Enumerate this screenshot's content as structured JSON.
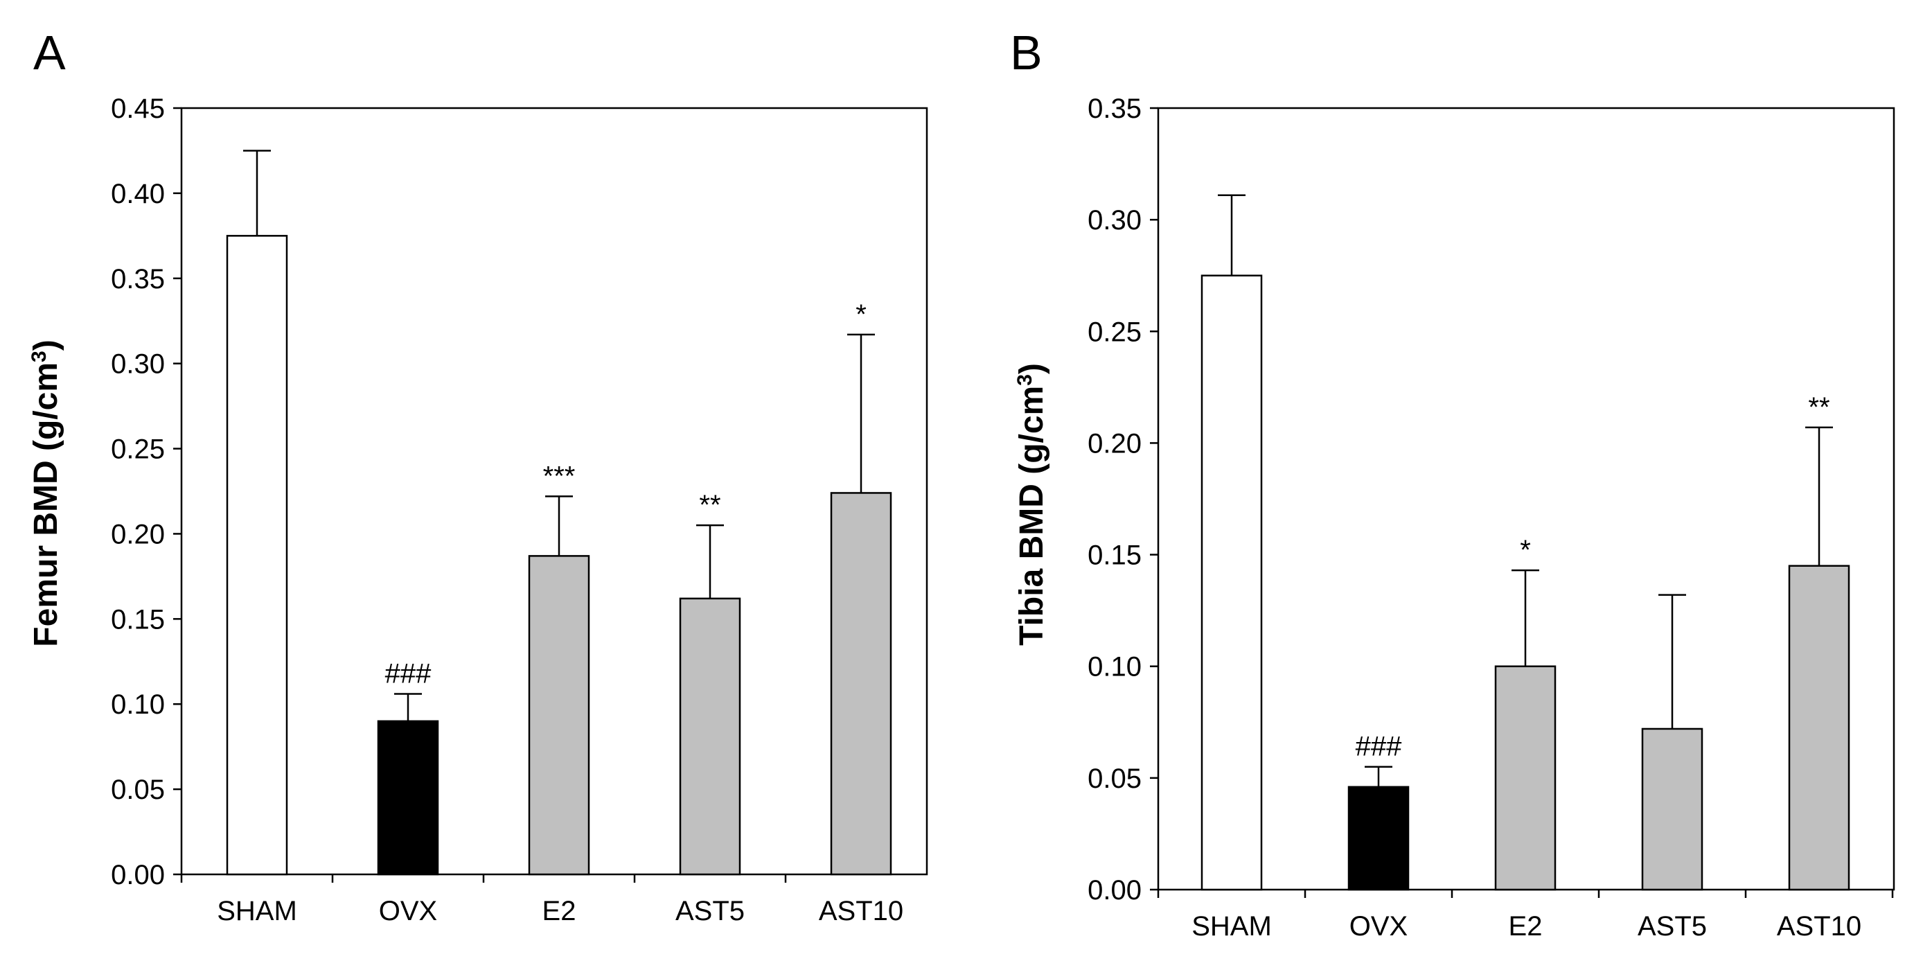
{
  "chart_data": [
    {
      "panel": "A",
      "type": "bar",
      "ylabel": "Femur BMD (g/cm",
      "ylabel_sup": "3",
      "ylabel_end": ")",
      "ylim": [
        0,
        0.45
      ],
      "yticks": [
        "0.00",
        "0.05",
        "0.10",
        "0.15",
        "0.20",
        "0.25",
        "0.30",
        "0.35",
        "0.40",
        "0.45"
      ],
      "categories": [
        "SHAM",
        "OVX",
        "E2",
        "AST5",
        "AST10"
      ],
      "values": [
        0.375,
        0.09,
        0.187,
        0.162,
        0.224
      ],
      "errors": [
        0.05,
        0.016,
        0.035,
        0.043,
        0.093
      ],
      "bar_colors": [
        "#ffffff",
        "#000000",
        "#c0c0c0",
        "#c0c0c0",
        "#c0c0c0"
      ],
      "annotations": [
        "",
        "###",
        "***",
        "**",
        "*"
      ],
      "grid": false
    },
    {
      "panel": "B",
      "type": "bar",
      "ylabel": "Tibia BMD (g/cm",
      "ylabel_sup": "3",
      "ylabel_end": ")",
      "ylim": [
        0,
        0.35
      ],
      "yticks": [
        "0.00",
        "0.05",
        "0.10",
        "0.15",
        "0.20",
        "0.25",
        "0.30",
        "0.35"
      ],
      "categories": [
        "SHAM",
        "OVX",
        "E2",
        "AST5",
        "AST10"
      ],
      "values": [
        0.275,
        0.046,
        0.1,
        0.072,
        0.145
      ],
      "errors": [
        0.036,
        0.009,
        0.043,
        0.06,
        0.062
      ],
      "bar_colors": [
        "#ffffff",
        "#000000",
        "#c0c0c0",
        "#c0c0c0",
        "#c0c0c0"
      ],
      "annotations": [
        "",
        "###",
        "*",
        "",
        "**"
      ],
      "grid": false
    }
  ]
}
